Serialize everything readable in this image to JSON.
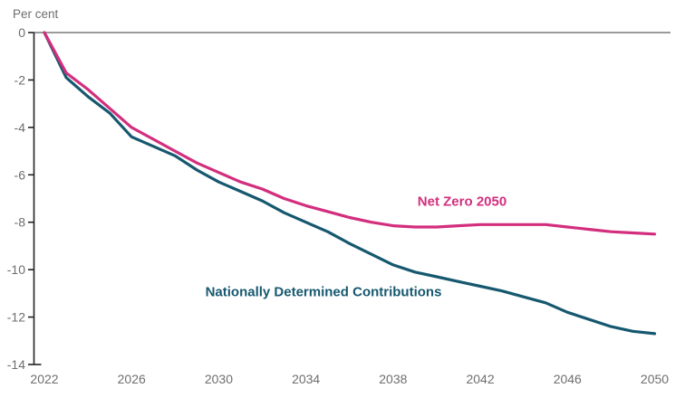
{
  "chart": {
    "unit_label": "Per cent",
    "series_labels": {
      "net_zero": "Net Zero 2050",
      "ndc": "Nationally Determined Contributions"
    }
  },
  "chart_data": {
    "type": "line",
    "title": "",
    "ylabel": "Per cent",
    "xlabel": "",
    "legend": "inline-labels-on-chart",
    "grid": "zero-line-only",
    "ylim": [
      -14,
      0
    ],
    "xlim": [
      2022,
      2050
    ],
    "x": [
      2022,
      2023,
      2024,
      2025,
      2026,
      2027,
      2028,
      2029,
      2030,
      2031,
      2032,
      2033,
      2034,
      2035,
      2036,
      2037,
      2038,
      2039,
      2040,
      2041,
      2042,
      2043,
      2044,
      2045,
      2046,
      2047,
      2048,
      2049,
      2050
    ],
    "xticks": [
      2022,
      2026,
      2030,
      2034,
      2038,
      2042,
      2046,
      2050
    ],
    "yticks": [
      0,
      -2,
      -4,
      -6,
      -8,
      -10,
      -12,
      -14
    ],
    "series": [
      {
        "name": "Nationally Determined Contributions",
        "color": "#16586f",
        "values": [
          0,
          -1.9,
          -2.7,
          -3.4,
          -4.4,
          -4.8,
          -5.2,
          -5.8,
          -6.3,
          -6.7,
          -7.1,
          -7.6,
          -8.0,
          -8.4,
          -8.9,
          -9.35,
          -9.8,
          -10.1,
          -10.3,
          -10.5,
          -10.7,
          -10.9,
          -11.15,
          -11.4,
          -11.8,
          -12.1,
          -12.4,
          -12.6,
          -12.7
        ]
      },
      {
        "name": "Net Zero 2050",
        "color": "#d32e7e",
        "values": [
          0,
          -1.7,
          -2.4,
          -3.2,
          -4.0,
          -4.5,
          -5.0,
          -5.5,
          -5.9,
          -6.3,
          -6.6,
          -7.0,
          -7.3,
          -7.55,
          -7.8,
          -8.0,
          -8.15,
          -8.2,
          -8.2,
          -8.15,
          -8.1,
          -8.1,
          -8.1,
          -8.1,
          -8.2,
          -8.3,
          -8.4,
          -8.45,
          -8.5
        ]
      }
    ],
    "axis_style": {
      "axis_line_color": "#222222",
      "zero_gridline_color": "#9b9b9b",
      "tick_text_color": "#6e6e6e"
    }
  }
}
